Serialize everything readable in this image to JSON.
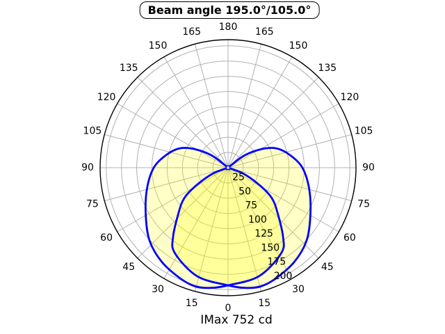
{
  "title": "Beam angle 195.0°/105.0°",
  "footer": "IMax 752 cd",
  "chart_data": {
    "type": "line",
    "subtype": "polar-photometric-diagram",
    "title": "Beam angle 195.0°/105.0°",
    "footer_annotation": "IMax 752 cd",
    "imax_cd": 752,
    "beam_angles_deg": [
      195.0,
      105.0
    ],
    "angle_tick_labels_deg": [
      0,
      15,
      30,
      45,
      60,
      75,
      90,
      105,
      120,
      135,
      150,
      165,
      180
    ],
    "angle_ticks_mirrored_left_right": true,
    "angle_zero_position": "bottom",
    "radial_tick_labels": [
      25,
      50,
      75,
      100,
      125,
      150,
      175,
      200
    ],
    "radial_axis_max": 210,
    "grid_on": true,
    "legend": "none",
    "series": [
      {
        "id": "lobe-right",
        "description": "beam lobe tilted right, polar profile; theta in degrees from nadir (positive = right side), r in candela-scale units",
        "theta_deg": [
          133,
          127,
          119,
          112,
          102,
          90,
          75,
          60,
          47,
          35,
          23,
          15,
          8,
          0,
          -16,
          -32,
          -38.5,
          -47.3,
          -55.1,
          -60.5,
          -68.6,
          -74
        ],
        "r_values": [
          0,
          33,
          63,
          85,
          103,
          122,
          138,
          156,
          176,
          189,
          198,
          202,
          199,
          193,
          185,
          165,
          145,
          111,
          88,
          62,
          28,
          0
        ],
        "stroke": "#0000ff",
        "fill": "#ffff00"
      },
      {
        "id": "lobe-left",
        "mirror_of": "lobe-right",
        "stroke": "#0000ff",
        "fill": "#ffff00"
      }
    ],
    "origin_marker": "small-blue-square",
    "colors": {
      "curve": "#0000ff",
      "fill": "#ffff00",
      "grid": "#b0b0b0",
      "axis": "#000000",
      "background": "#ffffff"
    }
  }
}
